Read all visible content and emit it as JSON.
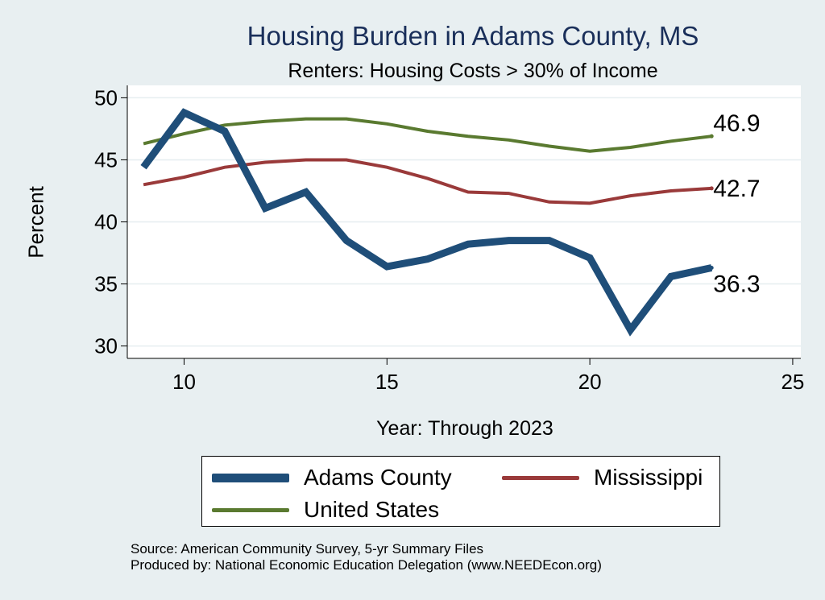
{
  "chart_data": {
    "type": "line",
    "title": "Housing Burden in Adams County, MS",
    "subtitle": "Renters: Housing Costs > 30% of Income",
    "xlabel": "Year: Through 2023",
    "ylabel": "Percent",
    "xlim": [
      8.6,
      25.2
    ],
    "ylim": [
      29.0,
      51.0
    ],
    "xticks": [
      10,
      15,
      20,
      25
    ],
    "yticks": [
      30,
      35,
      40,
      45,
      50
    ],
    "grid": true,
    "legend_position": "bottom",
    "x": [
      9,
      10,
      11,
      12,
      13,
      14,
      15,
      16,
      17,
      18,
      19,
      20,
      21,
      22,
      23
    ],
    "series": [
      {
        "name": "Adams County",
        "color": "#1f4e79",
        "values": [
          44.4,
          48.8,
          47.3,
          41.1,
          42.4,
          38.5,
          36.4,
          37.0,
          38.2,
          38.5,
          38.5,
          37.1,
          31.3,
          35.6,
          36.3
        ],
        "end_label": "36.3"
      },
      {
        "name": "Mississippi",
        "color": "#9a3a3a",
        "values": [
          43.0,
          43.6,
          44.4,
          44.8,
          45.0,
          45.0,
          44.4,
          43.5,
          42.4,
          42.3,
          41.6,
          41.5,
          42.1,
          42.5,
          42.7
        ],
        "end_label": "42.7"
      },
      {
        "name": "United States",
        "color": "#5a7a30",
        "values": [
          46.3,
          47.1,
          47.8,
          48.1,
          48.3,
          48.3,
          47.9,
          47.3,
          46.9,
          46.6,
          46.1,
          45.7,
          46.0,
          46.5,
          46.9
        ],
        "end_label": "46.9"
      }
    ]
  },
  "legend": {
    "items": [
      "Adams County",
      "Mississippi",
      "United States"
    ]
  },
  "source": {
    "line1": "Source: American Community Survey, 5-yr Summary Files",
    "line2": "Produced by: National Economic Education Delegation (www.NEEDEcon.org)"
  }
}
